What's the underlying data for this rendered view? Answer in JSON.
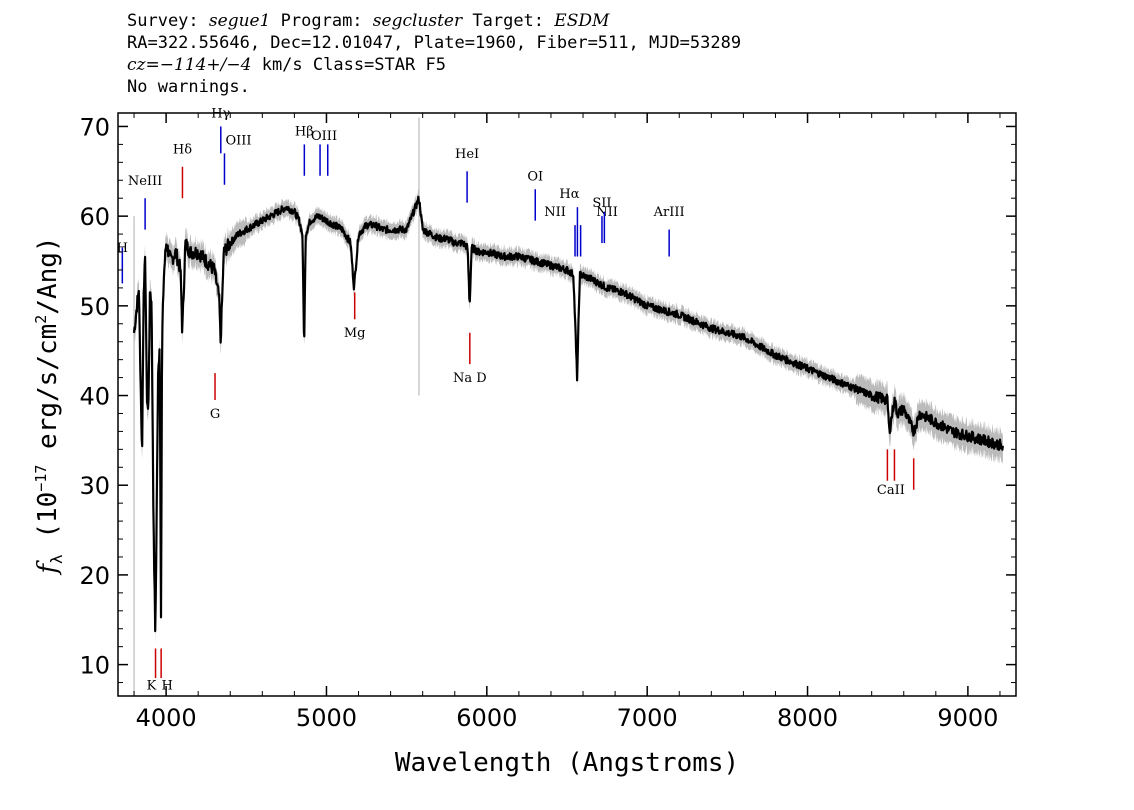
{
  "header": {
    "survey_label": "Survey:",
    "survey": "segue1",
    "program_label": "Program:",
    "program": "segcluster",
    "target_label": "Target:",
    "target": "ESDM",
    "line2": "RA=322.55646, Dec=12.01047, Plate=1960, Fiber=511, MJD=53289",
    "cz_label": "cz=",
    "cz_value": "−114+/−4",
    "cz_rest": " km/s Class=STAR F5",
    "line4": "No warnings."
  },
  "chart_data": {
    "type": "line",
    "xlabel": "Wavelength (Angstroms)",
    "ylabel": "f_λ (10^-17 erg/s/cm^2/Ang)",
    "xlim": [
      3700,
      9300
    ],
    "ylim": [
      6.5,
      71.5
    ],
    "x_ticks": [
      4000,
      5000,
      6000,
      7000,
      8000,
      9000
    ],
    "y_ticks": [
      10,
      20,
      30,
      40,
      50,
      60,
      70
    ],
    "flux_series": {
      "name": "flux",
      "color": "#000000",
      "x": [
        3800,
        3830,
        3850,
        3860,
        3870,
        3880,
        3889,
        3900,
        3910,
        3920,
        3933,
        3950,
        3960,
        3968,
        3975,
        3985,
        4000,
        4030,
        4060,
        4090,
        4101,
        4120,
        4150,
        4200,
        4250,
        4300,
        4330,
        4340,
        4360,
        4400,
        4450,
        4500,
        4550,
        4600,
        4650,
        4700,
        4750,
        4800,
        4830,
        4850,
        4861,
        4870,
        4900,
        4950,
        5000,
        5050,
        5100,
        5150,
        5172,
        5200,
        5250,
        5300,
        5350,
        5400,
        5500,
        5577,
        5600,
        5650,
        5700,
        5750,
        5800,
        5850,
        5880,
        5893,
        5905,
        5950,
        6000,
        6100,
        6200,
        6300,
        6400,
        6500,
        6540,
        6563,
        6580,
        6650,
        6750,
        6850,
        7000,
        7200,
        7400,
        7600,
        7800,
        8000,
        8200,
        8400,
        8498,
        8510,
        8542,
        8560,
        8600,
        8662,
        8700,
        8800,
        8900,
        9000,
        9100,
        9200,
        9220
      ],
      "y": [
        47,
        52,
        33,
        52,
        55,
        40,
        38,
        52,
        50,
        28,
        13,
        42,
        46,
        16,
        46,
        53,
        57,
        55,
        56,
        54,
        47,
        57,
        56,
        56,
        55,
        54,
        51,
        46,
        56,
        57,
        58,
        58.5,
        59,
        59.5,
        60,
        60.5,
        61,
        60.5,
        59.5,
        58,
        45,
        58,
        59.5,
        60,
        59.5,
        59,
        58.5,
        57,
        52,
        58,
        59,
        59,
        58.5,
        58.5,
        58.5,
        62,
        58.5,
        58,
        57.5,
        57.5,
        57,
        57,
        56.5,
        50,
        56.5,
        56,
        56,
        55.5,
        55.5,
        55,
        54.5,
        54,
        53.5,
        42,
        53.5,
        53,
        52,
        51.5,
        50,
        49,
        47.5,
        46.5,
        44.5,
        43,
        41.5,
        40,
        39.5,
        36,
        39.5,
        38,
        38.5,
        36,
        38,
        37,
        36,
        35.5,
        35,
        34.5,
        34
      ]
    },
    "error_band": {
      "name": "flux uncertainty",
      "color": "#bbbbbb"
    },
    "emission_lines": [
      {
        "label": "H",
        "x": 3727,
        "color": "#0000cc"
      },
      {
        "label": "NeIII",
        "x": 3869,
        "color": "#0000cc"
      },
      {
        "label": "Hδ",
        "x": 4102,
        "color": "#cc0000"
      },
      {
        "label": "Hγ",
        "x": 4341,
        "color": "#0000cc"
      },
      {
        "label": "OIII",
        "x": 4364,
        "color": "#0000cc"
      },
      {
        "label": "Hβ",
        "x": 4862,
        "color": "#0000cc"
      },
      {
        "label": "OIII",
        "x": 4960,
        "color": "#0000cc"
      },
      {
        "label": "OIII",
        "x": 5008,
        "color": "#0000cc"
      },
      {
        "label": "HeI",
        "x": 5877,
        "color": "#0000cc"
      },
      {
        "label": "OI",
        "x": 6302,
        "color": "#0000cc"
      },
      {
        "label": "NII",
        "x": 6550,
        "color": "#0000cc"
      },
      {
        "label": "Hα",
        "x": 6565,
        "color": "#0000cc"
      },
      {
        "label": "NII",
        "x": 6585,
        "color": "#0000cc"
      },
      {
        "label": "SII",
        "x": 6718,
        "color": "#0000cc"
      },
      {
        "label": "SII",
        "x": 6733,
        "color": "#0000cc"
      },
      {
        "label": "ArIII",
        "x": 7137,
        "color": "#0000cc"
      }
    ],
    "absorption_lines": [
      {
        "label": "K",
        "x": 3934,
        "color": "#cc0000"
      },
      {
        "label": "H",
        "x": 3969,
        "color": "#cc0000"
      },
      {
        "label": "G",
        "x": 4305,
        "color": "#cc0000"
      },
      {
        "label": "Mg",
        "x": 5176,
        "color": "#cc0000"
      },
      {
        "label": "Na D",
        "x": 5894,
        "color": "#cc0000"
      },
      {
        "label": "CaII",
        "x": 8498,
        "color": "#cc0000"
      },
      {
        "label": "CaII",
        "x": 8542,
        "color": "#cc0000"
      },
      {
        "label": "CaII",
        "x": 8662,
        "color": "#cc0000"
      }
    ]
  }
}
